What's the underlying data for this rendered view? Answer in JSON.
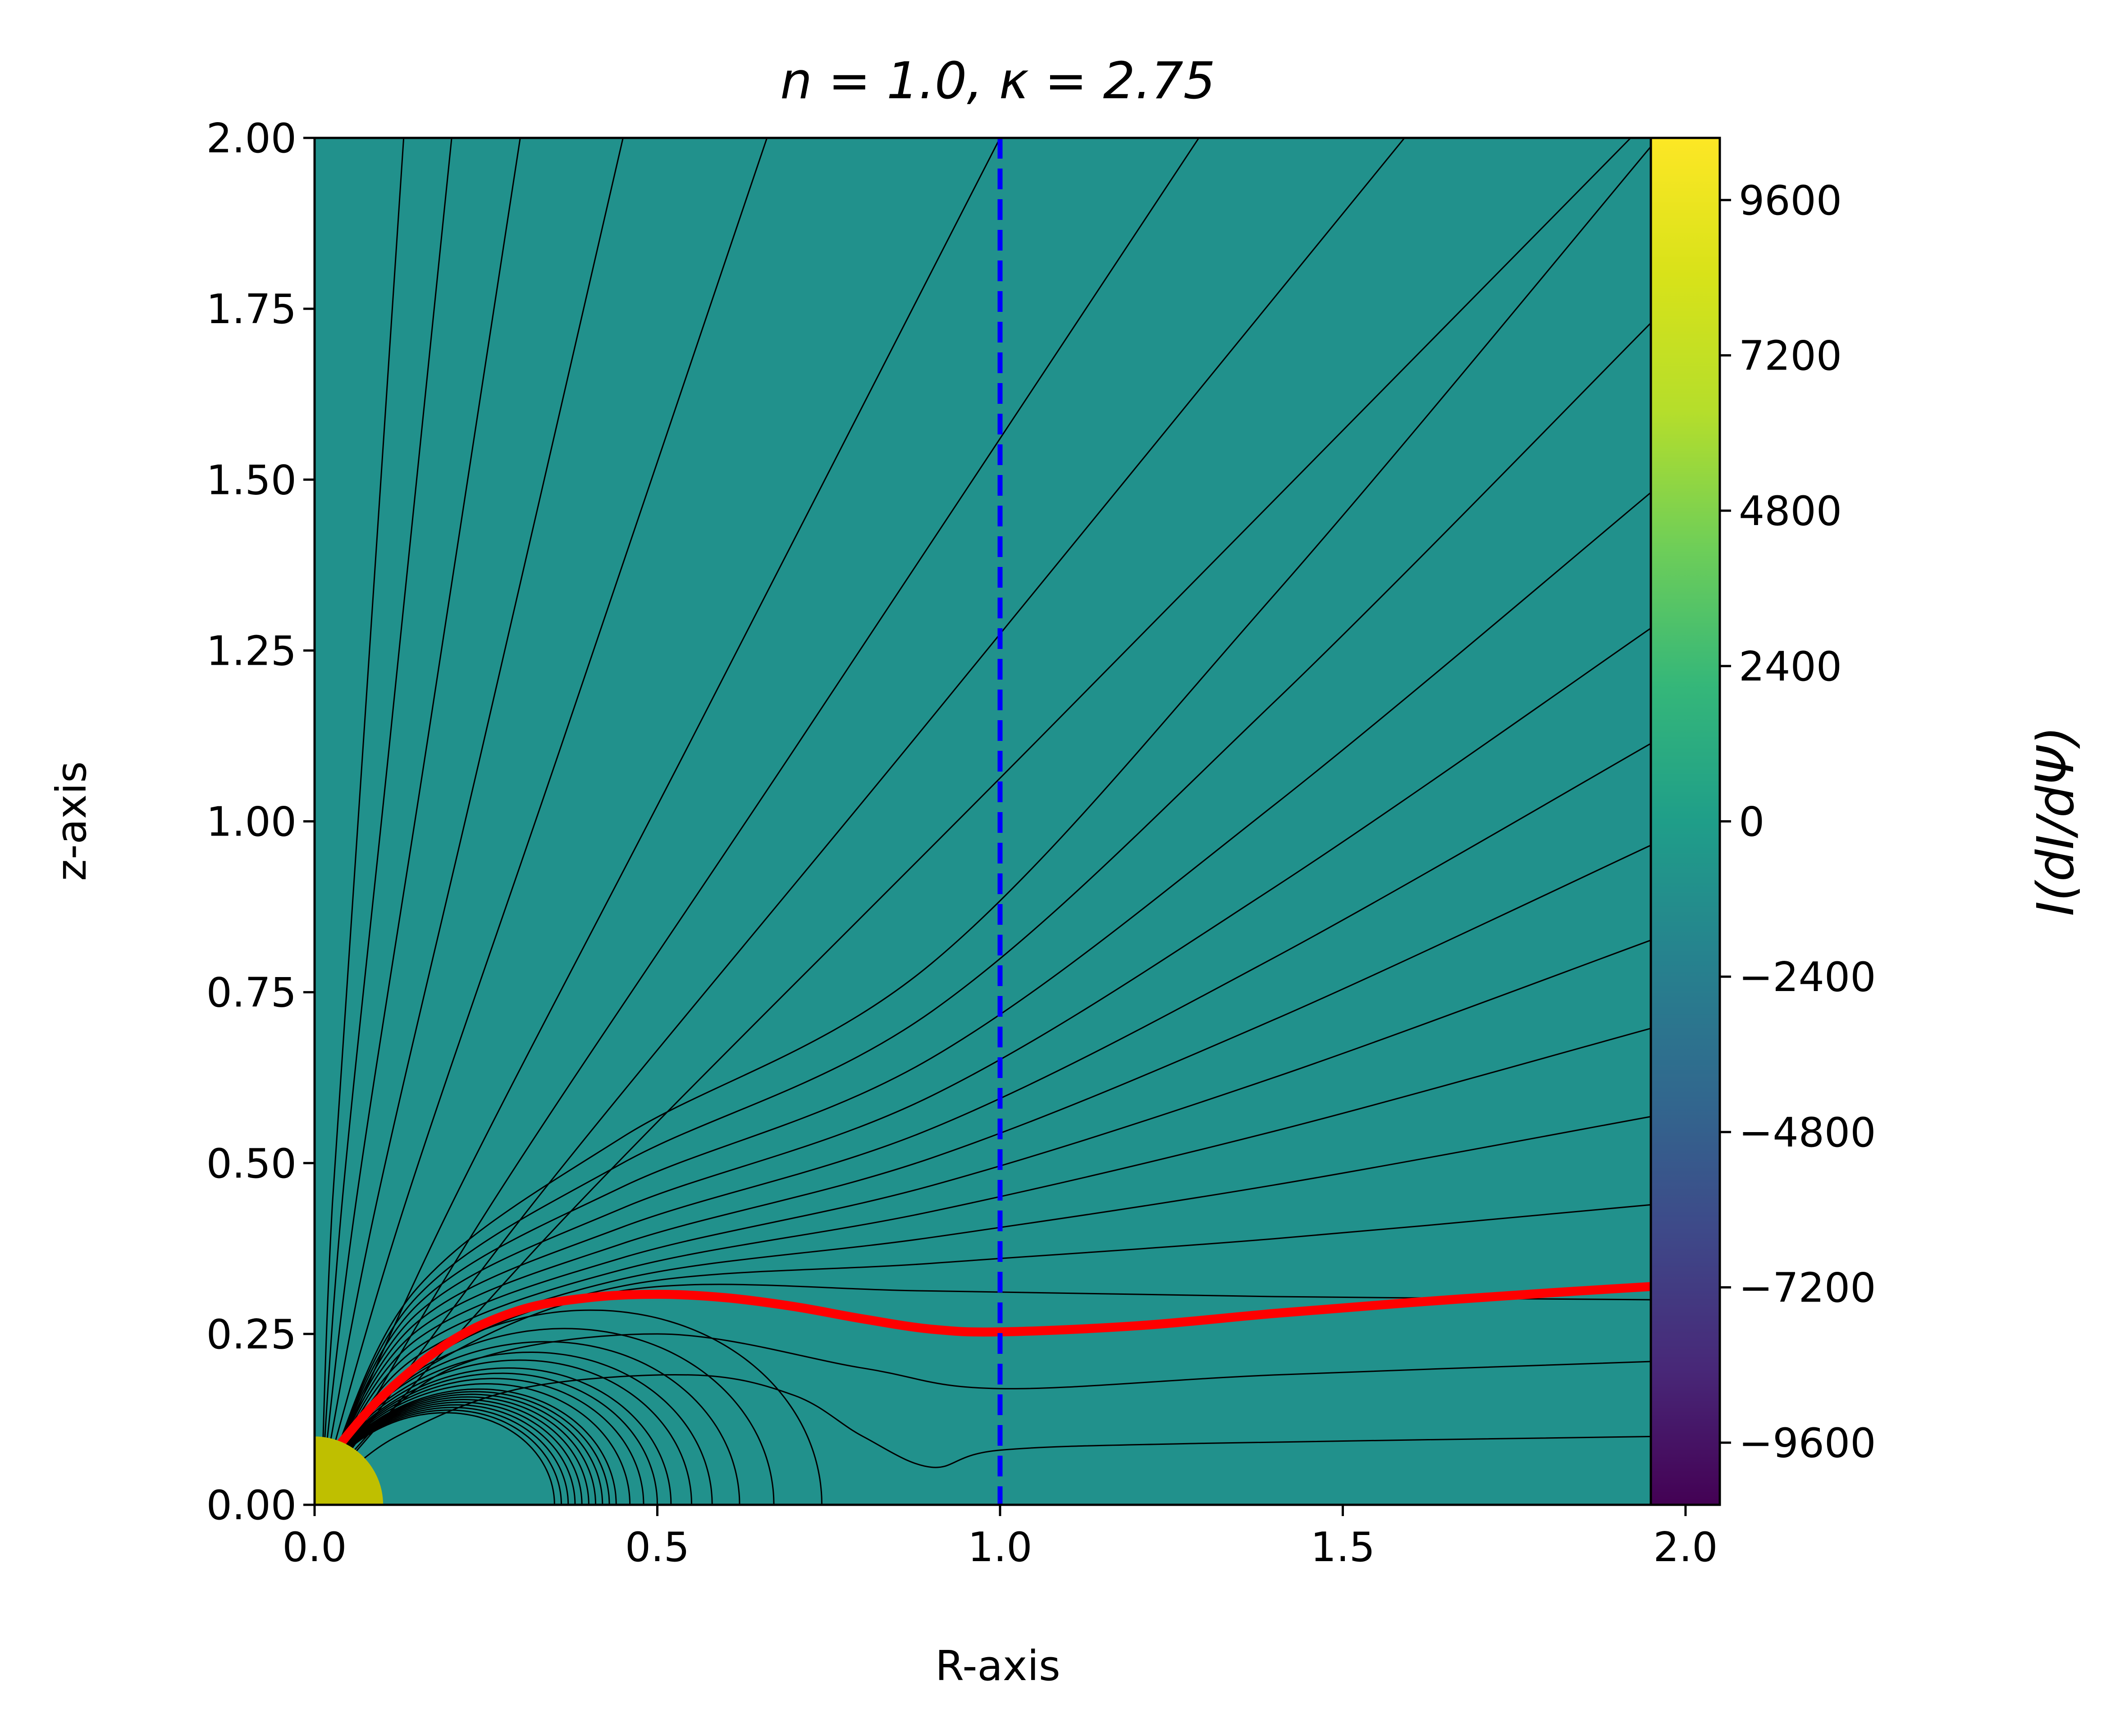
{
  "chart_data": {
    "type": "contour",
    "title": "n = 1.0, κ = 2.75",
    "xlabel": "R-axis",
    "ylabel": "z-axis",
    "xlim": [
      0.0,
      2.05
    ],
    "ylim": [
      0.0,
      2.0
    ],
    "x_ticks": [
      "0.0",
      "0.5",
      "1.0",
      "1.5",
      "2.0"
    ],
    "y_ticks": [
      "0.00",
      "0.25",
      "0.50",
      "0.75",
      "1.00",
      "1.25",
      "1.50",
      "1.75",
      "2.00"
    ],
    "grid": false,
    "field_extent_R": 1.96,
    "background_field_color": "#21918c",
    "colorbar": {
      "label": "I(dI/dΨ)",
      "range": [
        -10560,
        10560
      ],
      "ticks": [
        "9600",
        "7200",
        "4800",
        "2400",
        "0",
        "−2400",
        "−4800",
        "−7200",
        "−9600"
      ],
      "colormap": "viridis"
    },
    "star": {
      "radius": 0.1,
      "color": "#bfbf00"
    },
    "light_cylinder": {
      "R": 1.0,
      "color": "#0000ff",
      "style": "dashed"
    },
    "separatrix": {
      "color": "#ff0000",
      "points": [
        [
          0.03,
          0.08
        ],
        [
          0.1,
          0.16
        ],
        [
          0.2,
          0.24
        ],
        [
          0.3,
          0.285
        ],
        [
          0.4,
          0.303
        ],
        [
          0.5,
          0.308
        ],
        [
          0.6,
          0.303
        ],
        [
          0.7,
          0.29
        ],
        [
          0.8,
          0.272
        ],
        [
          0.9,
          0.257
        ],
        [
          1.0,
          0.253
        ],
        [
          1.2,
          0.262
        ],
        [
          1.4,
          0.28
        ],
        [
          1.6,
          0.296
        ],
        [
          1.8,
          0.31
        ],
        [
          1.96,
          0.32
        ]
      ]
    },
    "closed_field_line_footpoints_R": [
      0.35,
      0.36,
      0.37,
      0.38,
      0.39,
      0.4,
      0.41,
      0.42,
      0.43,
      0.44,
      0.46,
      0.48,
      0.5,
      0.52,
      0.55,
      0.58,
      0.62,
      0.67,
      0.74
    ],
    "open_field_line_heights_at_R_1_96": [
      0.1,
      0.21,
      0.3,
      0.44,
      0.57,
      0.7,
      0.83,
      0.97,
      1.12,
      1.29,
      1.49,
      1.74,
      2.0
    ],
    "open_field_line_top_crossings_R": [
      0.66,
      1.0,
      1.29,
      1.59,
      1.92
    ]
  }
}
